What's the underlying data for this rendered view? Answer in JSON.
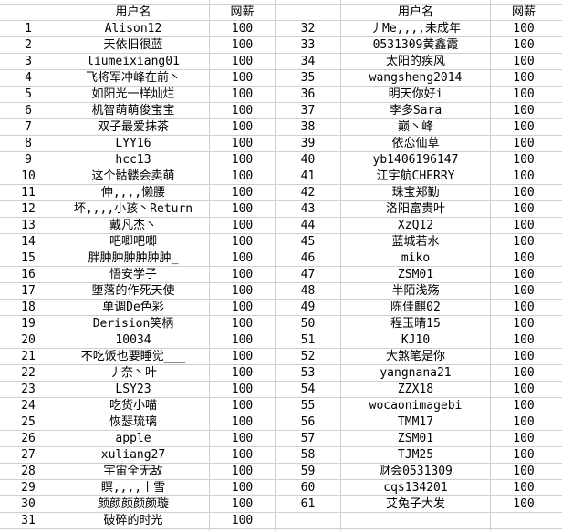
{
  "colors": {
    "gridline": "#c8d0e0",
    "background": "#ffffff",
    "text": "#000000"
  },
  "table": {
    "header": {
      "username": "用户名",
      "salary": "网薪"
    },
    "left_rows": [
      {
        "n": "1",
        "name": "Alison12",
        "salary": "100"
      },
      {
        "n": "2",
        "name": "天依旧很蓝",
        "salary": "100"
      },
      {
        "n": "3",
        "name": "liumeixiang01",
        "salary": "100"
      },
      {
        "n": "4",
        "name": "飞将军冲峰在前丶",
        "salary": "100"
      },
      {
        "n": "5",
        "name": "如阳光一样灿烂",
        "salary": "100"
      },
      {
        "n": "6",
        "name": "机智萌萌俊宝宝",
        "salary": "100"
      },
      {
        "n": "7",
        "name": "双子最爱抹茶",
        "salary": "100"
      },
      {
        "n": "8",
        "name": "LYY16",
        "salary": "100"
      },
      {
        "n": "9",
        "name": "hcc13",
        "salary": "100"
      },
      {
        "n": "10",
        "name": "这个骷髅会卖萌",
        "salary": "100"
      },
      {
        "n": "11",
        "name": "伸,,,,懒腰",
        "salary": "100"
      },
      {
        "n": "12",
        "name": "坏,,,,小孩丶Return",
        "salary": "100"
      },
      {
        "n": "13",
        "name": "戴凡杰丶",
        "salary": "100"
      },
      {
        "n": "14",
        "name": "吧唧吧唧",
        "salary": "100"
      },
      {
        "n": "15",
        "name": "胖肿肿肿肿肿肿_",
        "salary": "100"
      },
      {
        "n": "16",
        "name": "悟安学子",
        "salary": "100"
      },
      {
        "n": "17",
        "name": "堕落的作死天使",
        "salary": "100"
      },
      {
        "n": "18",
        "name": "单调De色彩",
        "salary": "100"
      },
      {
        "n": "19",
        "name": "Derision笑柄",
        "salary": "100"
      },
      {
        "n": "20",
        "name": "10034",
        "salary": "100"
      },
      {
        "n": "21",
        "name": "不吃饭也要睡觉___",
        "salary": "100"
      },
      {
        "n": "22",
        "name": "丿奈丶叶",
        "salary": "100"
      },
      {
        "n": "23",
        "name": "LSY23",
        "salary": "100"
      },
      {
        "n": "24",
        "name": "吃货小喵",
        "salary": "100"
      },
      {
        "n": "25",
        "name": "恢瑟琉璃",
        "salary": "100"
      },
      {
        "n": "26",
        "name": "apple",
        "salary": "100"
      },
      {
        "n": "27",
        "name": "xuliang27",
        "salary": "100"
      },
      {
        "n": "28",
        "name": "宇宙全无敌",
        "salary": "100"
      },
      {
        "n": "29",
        "name": "瞑,,,,丨雪",
        "salary": "100"
      },
      {
        "n": "30",
        "name": "颜颜颜颜颜璇",
        "salary": "100"
      },
      {
        "n": "31",
        "name": "破碎的时光",
        "salary": "100"
      }
    ],
    "right_rows": [
      {
        "n": "32",
        "name": "丿Me,,,,未成年",
        "salary": "100"
      },
      {
        "n": "33",
        "name": "0531309黄鑫霞",
        "salary": "100"
      },
      {
        "n": "34",
        "name": "太阳的疾风",
        "salary": "100"
      },
      {
        "n": "35",
        "name": "wangsheng2014",
        "salary": "100"
      },
      {
        "n": "36",
        "name": "明天你好i",
        "salary": "100"
      },
      {
        "n": "37",
        "name": "李多Sara",
        "salary": "100"
      },
      {
        "n": "38",
        "name": "巅丶峰",
        "salary": "100"
      },
      {
        "n": "39",
        "name": "依恋仙草",
        "salary": "100"
      },
      {
        "n": "40",
        "name": "yb1406196147",
        "salary": "100"
      },
      {
        "n": "41",
        "name": "江宇航CHERRY",
        "salary": "100"
      },
      {
        "n": "42",
        "name": "珠宝郑勤",
        "salary": "100"
      },
      {
        "n": "43",
        "name": "洛阳富贵叶",
        "salary": "100"
      },
      {
        "n": "44",
        "name": "XzQ12",
        "salary": "100"
      },
      {
        "n": "45",
        "name": "蓝城若水",
        "salary": "100"
      },
      {
        "n": "46",
        "name": "miko",
        "salary": "100"
      },
      {
        "n": "47",
        "name": "ZSM01",
        "salary": "100"
      },
      {
        "n": "48",
        "name": "半陌浅殇",
        "salary": "100"
      },
      {
        "n": "49",
        "name": "陈佳麒02",
        "salary": "100"
      },
      {
        "n": "50",
        "name": "程玉晴15",
        "salary": "100"
      },
      {
        "n": "51",
        "name": "KJ10",
        "salary": "100"
      },
      {
        "n": "52",
        "name": "大煞笔是你",
        "salary": "100"
      },
      {
        "n": "53",
        "name": "yangnana21",
        "salary": "100"
      },
      {
        "n": "54",
        "name": "ZZX18",
        "salary": "100"
      },
      {
        "n": "55",
        "name": "wocaonimagebi",
        "salary": "100"
      },
      {
        "n": "56",
        "name": "TMM17",
        "salary": "100"
      },
      {
        "n": "57",
        "name": "ZSM01",
        "salary": "100"
      },
      {
        "n": "58",
        "name": "TJM25",
        "salary": "100"
      },
      {
        "n": "59",
        "name": "财会0531309",
        "salary": "100"
      },
      {
        "n": "60",
        "name": "cqs134201",
        "salary": "100"
      },
      {
        "n": "61",
        "name": "艾兔子大发",
        "salary": "100"
      }
    ]
  }
}
